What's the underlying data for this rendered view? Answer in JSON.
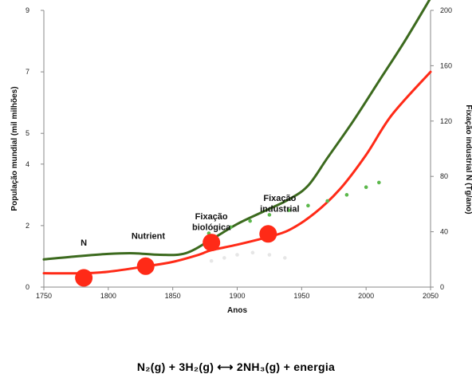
{
  "chart_data": {
    "type": "line",
    "xlabel": "Anos",
    "ylabel_left": "População mundial (mil milhões)",
    "ylabel_right": "Fixação industrial N (Tg/ano)",
    "xlim": [
      1750,
      2050
    ],
    "ylim_left": [
      0,
      9
    ],
    "ylim_right": [
      0,
      200
    ],
    "xticks": [
      "1750",
      "1800",
      "1850",
      "1900",
      "1950",
      "2000",
      "2050"
    ],
    "yticks_left": [
      "0",
      "2",
      "4",
      "5",
      "7",
      "9"
    ],
    "yticks_right": [
      "0",
      "40",
      "80",
      "120",
      "160",
      "200"
    ],
    "grid": false,
    "series": [
      {
        "axis": "left",
        "color": "#3c6a1e",
        "style": "solid",
        "points": [
          [
            1750,
            0.9
          ],
          [
            1775,
            1.0
          ],
          [
            1800,
            1.08
          ],
          [
            1820,
            1.1
          ],
          [
            1840,
            1.05
          ],
          [
            1860,
            1.1
          ],
          [
            1880,
            1.55
          ],
          [
            1900,
            2.05
          ],
          [
            1920,
            2.45
          ],
          [
            1940,
            2.85
          ],
          [
            1955,
            3.3
          ],
          [
            1970,
            4.2
          ],
          [
            1990,
            5.4
          ],
          [
            2010,
            6.7
          ],
          [
            2030,
            8.0
          ],
          [
            2050,
            9.4
          ]
        ]
      },
      {
        "axis": "left",
        "color": "#ff2a17",
        "style": "solid",
        "points": [
          [
            1750,
            0.45
          ],
          [
            1780,
            0.45
          ],
          [
            1800,
            0.5
          ],
          [
            1830,
            0.68
          ],
          [
            1850,
            0.82
          ],
          [
            1870,
            1.05
          ],
          [
            1880,
            1.2
          ],
          [
            1900,
            1.38
          ],
          [
            1923,
            1.62
          ],
          [
            1940,
            1.85
          ],
          [
            1960,
            2.4
          ],
          [
            1980,
            3.2
          ],
          [
            2000,
            4.3
          ],
          [
            2020,
            5.6
          ],
          [
            2050,
            7.0
          ]
        ]
      },
      {
        "axis": "left",
        "color": "#5cb84c",
        "style": "dotted",
        "points": [
          [
            1878,
            1.75
          ],
          [
            1895,
            1.95
          ],
          [
            1910,
            2.15
          ],
          [
            1925,
            2.35
          ],
          [
            1940,
            2.5
          ],
          [
            1955,
            2.65
          ],
          [
            1970,
            2.8
          ],
          [
            1985,
            3.0
          ],
          [
            2000,
            3.25
          ],
          [
            2010,
            3.4
          ]
        ]
      },
      {
        "axis": "left",
        "color": "#e6e6e6",
        "style": "dotted",
        "points": [
          [
            1880,
            0.85
          ],
          [
            1890,
            0.95
          ],
          [
            1900,
            1.05
          ],
          [
            1912,
            1.12
          ],
          [
            1925,
            1.05
          ],
          [
            1937,
            0.95
          ]
        ]
      }
    ],
    "markers": [
      {
        "x": 1781,
        "y": 0.3
      },
      {
        "x": 1829,
        "y": 0.68
      },
      {
        "x": 1880,
        "y": 1.45
      },
      {
        "x": 1924,
        "y": 1.73
      }
    ],
    "annotations": [
      {
        "text": "N",
        "x": 1781,
        "y": 1.35
      },
      {
        "text": "Nutrient",
        "x": 1831,
        "y": 1.57
      },
      {
        "text": "Fixação",
        "x": 1880,
        "y": 2.2
      },
      {
        "text": "biológica",
        "x": 1880,
        "y": 1.85
      },
      {
        "text": "Fixação",
        "x": 1933,
        "y": 2.8
      },
      {
        "text": "industrial",
        "x": 1933,
        "y": 2.45
      }
    ]
  },
  "equation": "N₂(g) + 3H₂(g) ⟷ 2NH₃(g) + energia"
}
